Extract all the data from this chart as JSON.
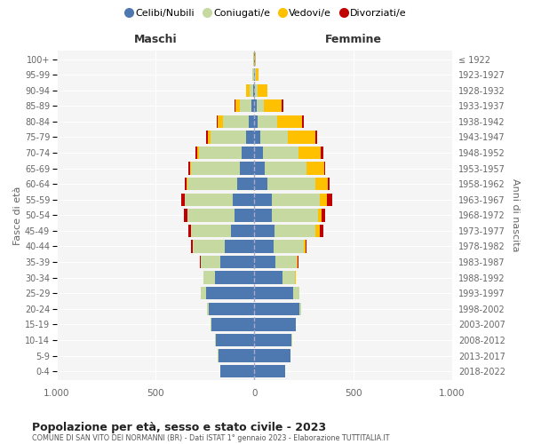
{
  "age_groups": [
    "0-4",
    "5-9",
    "10-14",
    "15-19",
    "20-24",
    "25-29",
    "30-34",
    "35-39",
    "40-44",
    "45-49",
    "50-54",
    "55-59",
    "60-64",
    "65-69",
    "70-74",
    "75-79",
    "80-84",
    "85-89",
    "90-94",
    "95-99",
    "100+"
  ],
  "birth_years": [
    "2018-2022",
    "2013-2017",
    "2008-2012",
    "2003-2007",
    "1998-2002",
    "1993-1997",
    "1988-1992",
    "1983-1987",
    "1978-1982",
    "1973-1977",
    "1968-1972",
    "1963-1967",
    "1958-1962",
    "1953-1957",
    "1948-1952",
    "1943-1947",
    "1938-1942",
    "1933-1937",
    "1928-1932",
    "1923-1927",
    "≤ 1922"
  ],
  "maschi_celibi": [
    170,
    183,
    196,
    218,
    232,
    243,
    198,
    174,
    148,
    119,
    100,
    108,
    88,
    73,
    63,
    40,
    30,
    15,
    6,
    3,
    2
  ],
  "maschi_coniugati": [
    1,
    1,
    2,
    4,
    8,
    28,
    58,
    97,
    162,
    202,
    237,
    243,
    252,
    248,
    217,
    183,
    127,
    58,
    20,
    6,
    2
  ],
  "maschi_vedovi": [
    0,
    0,
    0,
    0,
    0,
    0,
    0,
    0,
    0,
    1,
    2,
    2,
    4,
    6,
    8,
    12,
    28,
    22,
    14,
    3,
    0
  ],
  "maschi_divorziati": [
    0,
    0,
    0,
    0,
    1,
    2,
    3,
    4,
    10,
    13,
    16,
    18,
    10,
    8,
    8,
    8,
    5,
    3,
    2,
    0,
    0
  ],
  "femmine_nubili": [
    157,
    183,
    188,
    208,
    228,
    198,
    143,
    108,
    98,
    104,
    88,
    88,
    68,
    52,
    43,
    28,
    18,
    10,
    5,
    2,
    2
  ],
  "femmine_coniugate": [
    0,
    1,
    2,
    4,
    8,
    28,
    63,
    107,
    152,
    207,
    232,
    242,
    242,
    212,
    182,
    143,
    97,
    38,
    12,
    5,
    2
  ],
  "femmine_vedove": [
    0,
    0,
    0,
    0,
    0,
    1,
    2,
    4,
    8,
    18,
    22,
    38,
    62,
    88,
    112,
    137,
    127,
    92,
    48,
    14,
    2
  ],
  "femmine_divorziate": [
    0,
    0,
    0,
    0,
    0,
    1,
    2,
    4,
    6,
    18,
    16,
    28,
    10,
    8,
    12,
    10,
    8,
    5,
    3,
    0,
    0
  ],
  "colors": {
    "celibi": "#4e78b0",
    "coniugati": "#c5d9a0",
    "vedovi": "#ffc000",
    "divorziati": "#c00000"
  },
  "title": "Popolazione per età, sesso e stato civile - 2023",
  "subtitle": "COMUNE DI SAN VITO DEI NORMANNI (BR) - Dati ISTAT 1° gennaio 2023 - Elaborazione TUTTITALIA.IT",
  "header_left": "Maschi",
  "header_right": "Femmine",
  "ylabel_left": "Fasce di età",
  "ylabel_right": "Anni di nascita",
  "legend_labels": [
    "Celibi/Nubili",
    "Coniugati/e",
    "Vedovi/e",
    "Divorziati/e"
  ],
  "xlim": 1000,
  "bg_color": "#ffffff",
  "plot_bg": "#f5f5f5"
}
